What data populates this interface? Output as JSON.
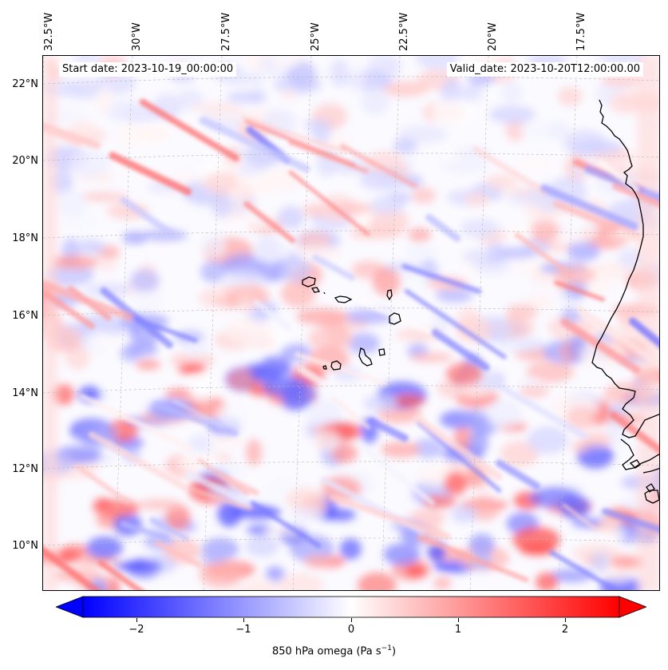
{
  "map": {
    "start_date": "Start date: 2023-10-19_00:00:00",
    "valid_date": "Valid_date: 2023-10-20T12:00:00.00",
    "longitude_labels": [
      "32.5°W",
      "30°W",
      "27.5°W",
      "25°W",
      "22.5°W",
      "20°W",
      "17.5°W"
    ],
    "latitude_labels": [
      "22°N",
      "20°N",
      "18°N",
      "16°N",
      "14°N",
      "12°N",
      "10°N"
    ],
    "variable": "850 hPa omega",
    "units": "Pa s",
    "units_exponent": "−1",
    "colormap": "bwr",
    "colormap_colors": [
      "#0000ff",
      "#ffffff",
      "#ff0000"
    ],
    "colorbar_range": [
      -2.5,
      2.5
    ],
    "colorbar_ticks": [
      "−2",
      "−1",
      "0",
      "1",
      "2"
    ],
    "colorbar_tick_values": [
      -2,
      -1,
      0,
      1,
      2
    ],
    "colorbar_extend": "both",
    "gridlines": true,
    "coastlines": true
  }
}
